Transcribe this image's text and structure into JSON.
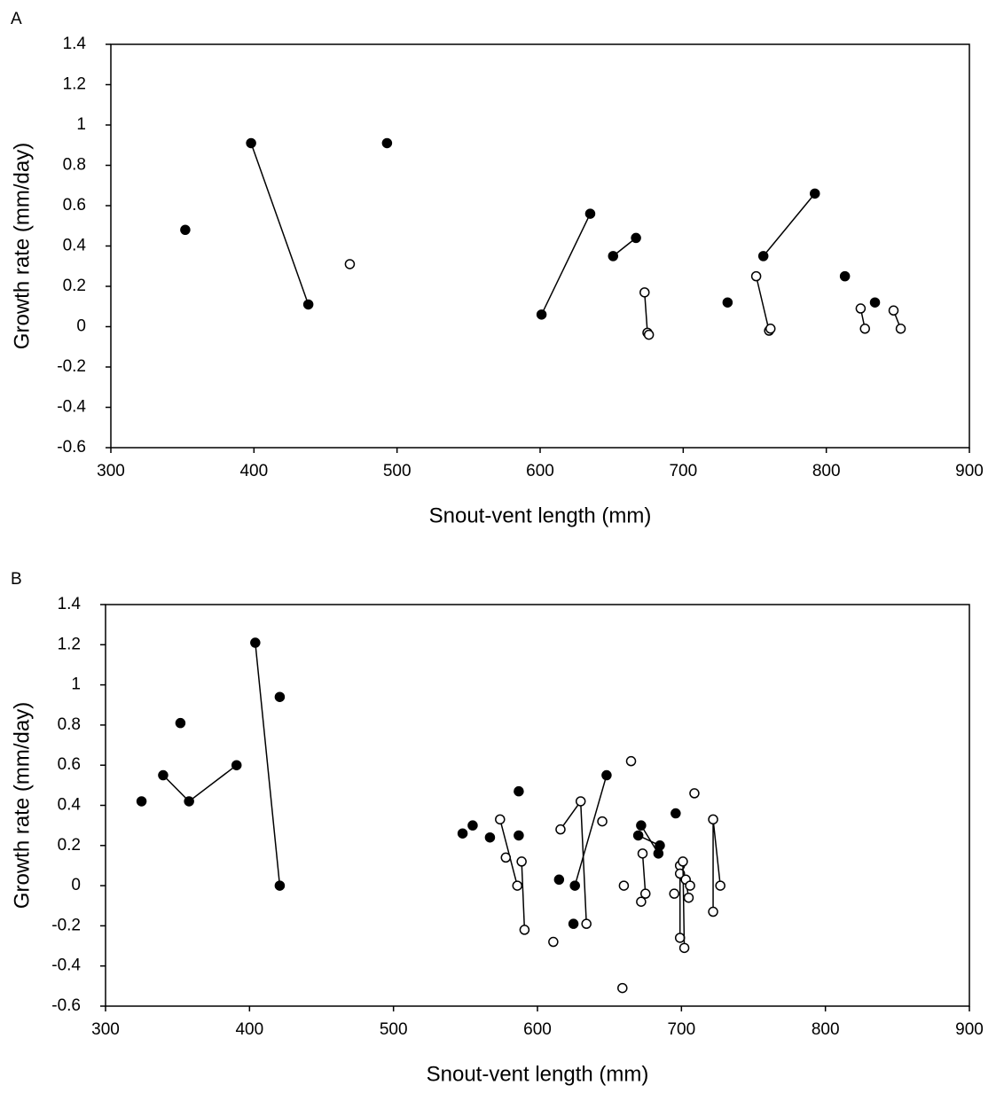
{
  "chart_data": [
    {
      "type": "scatter",
      "panel_label": "A",
      "xlabel": "Snout-vent length (mm)",
      "ylabel": "Growth rate (mm/day)",
      "xlim": [
        300,
        900
      ],
      "ylim": [
        -0.6,
        1.4
      ],
      "xticks": [
        300,
        400,
        500,
        600,
        700,
        800,
        900
      ],
      "yticks": [
        -0.6,
        -0.4,
        -0.2,
        0,
        0.2,
        0.4,
        0.6,
        0.8,
        1,
        1.2,
        1.4
      ],
      "series": [
        {
          "marker": "filled",
          "color": "#000000",
          "x": [
            352
          ],
          "y": [
            0.48
          ]
        },
        {
          "marker": "filled",
          "color": "#000000",
          "x": [
            398,
            438
          ],
          "y": [
            0.91,
            0.11
          ]
        },
        {
          "marker": "open",
          "color": "#000000",
          "x": [
            467
          ],
          "y": [
            0.31
          ]
        },
        {
          "marker": "filled",
          "color": "#000000",
          "x": [
            493
          ],
          "y": [
            0.91
          ]
        },
        {
          "marker": "filled",
          "color": "#000000",
          "x": [
            601,
            635
          ],
          "y": [
            0.06,
            0.56
          ]
        },
        {
          "marker": "filled",
          "color": "#000000",
          "x": [
            651,
            667
          ],
          "y": [
            0.35,
            0.44
          ]
        },
        {
          "marker": "open",
          "color": "#000000",
          "x": [
            673,
            675,
            676
          ],
          "y": [
            0.17,
            -0.03,
            -0.04
          ]
        },
        {
          "marker": "filled",
          "color": "#000000",
          "x": [
            731
          ],
          "y": [
            0.12
          ]
        },
        {
          "marker": "open",
          "color": "#000000",
          "x": [
            751,
            760,
            761
          ],
          "y": [
            0.25,
            -0.02,
            -0.01
          ]
        },
        {
          "marker": "filled",
          "color": "#000000",
          "x": [
            756,
            792
          ],
          "y": [
            0.35,
            0.66
          ]
        },
        {
          "marker": "filled",
          "color": "#000000",
          "x": [
            813
          ],
          "y": [
            0.25
          ]
        },
        {
          "marker": "open",
          "color": "#000000",
          "x": [
            824,
            827
          ],
          "y": [
            0.09,
            -0.01
          ]
        },
        {
          "marker": "filled",
          "color": "#000000",
          "x": [
            834
          ],
          "y": [
            0.12
          ]
        },
        {
          "marker": "open",
          "color": "#000000",
          "x": [
            847,
            852
          ],
          "y": [
            0.08,
            -0.01
          ]
        }
      ]
    },
    {
      "type": "scatter",
      "panel_label": "B",
      "xlabel": "Snout-vent length (mm)",
      "ylabel": "Growth rate (mm/day)",
      "xlim": [
        300,
        900
      ],
      "ylim": [
        -0.6,
        1.4
      ],
      "xticks": [
        300,
        400,
        500,
        600,
        700,
        800,
        900
      ],
      "yticks": [
        -0.6,
        -0.4,
        -0.2,
        0,
        0.2,
        0.4,
        0.6,
        0.8,
        1,
        1.2,
        1.4
      ],
      "series": [
        {
          "marker": "filled",
          "color": "#000000",
          "x": [
            325
          ],
          "y": [
            0.42
          ]
        },
        {
          "marker": "filled",
          "color": "#000000",
          "x": [
            340,
            358,
            391
          ],
          "y": [
            0.55,
            0.42,
            0.6
          ]
        },
        {
          "marker": "filled",
          "color": "#000000",
          "x": [
            352
          ],
          "y": [
            0.81
          ]
        },
        {
          "marker": "filled",
          "color": "#000000",
          "x": [
            404,
            421
          ],
          "y": [
            1.21,
            0
          ]
        },
        {
          "marker": "filled",
          "color": "#000000",
          "x": [
            421
          ],
          "y": [
            0.94
          ]
        },
        {
          "marker": "filled",
          "color": "#000000",
          "x": [
            548
          ],
          "y": [
            0.26
          ]
        },
        {
          "marker": "filled",
          "color": "#000000",
          "x": [
            555
          ],
          "y": [
            0.3
          ]
        },
        {
          "marker": "filled",
          "color": "#000000",
          "x": [
            567
          ],
          "y": [
            0.24
          ]
        },
        {
          "marker": "filled",
          "color": "#000000",
          "x": [
            587
          ],
          "y": [
            0.47
          ]
        },
        {
          "marker": "filled",
          "color": "#000000",
          "x": [
            587
          ],
          "y": [
            0.25
          ]
        },
        {
          "marker": "open",
          "color": "#000000",
          "x": [
            574,
            586
          ],
          "y": [
            0.33,
            0
          ]
        },
        {
          "marker": "open",
          "color": "#000000",
          "x": [
            578
          ],
          "y": [
            0.14
          ]
        },
        {
          "marker": "open",
          "color": "#000000",
          "x": [
            589,
            591
          ],
          "y": [
            0.12,
            -0.22
          ]
        },
        {
          "marker": "open",
          "color": "#000000",
          "x": [
            611
          ],
          "y": [
            -0.28
          ]
        },
        {
          "marker": "filled",
          "color": "#000000",
          "x": [
            615
          ],
          "y": [
            0.03
          ]
        },
        {
          "marker": "open",
          "color": "#000000",
          "x": [
            616,
            630,
            634
          ],
          "y": [
            0.28,
            0.42,
            -0.19
          ]
        },
        {
          "marker": "filled",
          "color": "#000000",
          "x": [
            625
          ],
          "y": [
            -0.19
          ]
        },
        {
          "marker": "filled",
          "color": "#000000",
          "x": [
            626,
            648
          ],
          "y": [
            0,
            0.55
          ]
        },
        {
          "marker": "open",
          "color": "#000000",
          "x": [
            645
          ],
          "y": [
            0.32
          ]
        },
        {
          "marker": "open",
          "color": "#000000",
          "x": [
            660
          ],
          "y": [
            0
          ]
        },
        {
          "marker": "open",
          "color": "#000000",
          "x": [
            659
          ],
          "y": [
            -0.51
          ]
        },
        {
          "marker": "open",
          "color": "#000000",
          "x": [
            665
          ],
          "y": [
            0.62
          ]
        },
        {
          "marker": "filled",
          "color": "#000000",
          "x": [
            672,
            684
          ],
          "y": [
            0.3,
            0.16
          ]
        },
        {
          "marker": "filled",
          "color": "#000000",
          "x": [
            670,
            685
          ],
          "y": [
            0.25,
            0.2
          ]
        },
        {
          "marker": "open",
          "color": "#000000",
          "x": [
            673,
            675
          ],
          "y": [
            0.16,
            -0.04
          ]
        },
        {
          "marker": "open",
          "color": "#000000",
          "x": [
            672
          ],
          "y": [
            -0.08
          ]
        },
        {
          "marker": "open",
          "color": "#000000",
          "x": [
            695
          ],
          "y": [
            -0.04
          ]
        },
        {
          "marker": "filled",
          "color": "#000000",
          "x": [
            696
          ],
          "y": [
            0.36
          ]
        },
        {
          "marker": "open",
          "color": "#000000",
          "x": [
            699,
            699
          ],
          "y": [
            0.1,
            -0.26
          ]
        },
        {
          "marker": "open",
          "color": "#000000",
          "x": [
            699
          ],
          "y": [
            0.06
          ]
        },
        {
          "marker": "open",
          "color": "#000000",
          "x": [
            701,
            702
          ],
          "y": [
            0.12,
            -0.31
          ]
        },
        {
          "marker": "open",
          "color": "#000000",
          "x": [
            703,
            705
          ],
          "y": [
            0.03,
            -0.06
          ]
        },
        {
          "marker": "open",
          "color": "#000000",
          "x": [
            706
          ],
          "y": [
            0
          ]
        },
        {
          "marker": "open",
          "color": "#000000",
          "x": [
            709
          ],
          "y": [
            0.46
          ]
        },
        {
          "marker": "open",
          "color": "#000000",
          "x": [
            722,
            722,
            727
          ],
          "y": [
            -0.13,
            0.33,
            0
          ]
        }
      ]
    }
  ]
}
